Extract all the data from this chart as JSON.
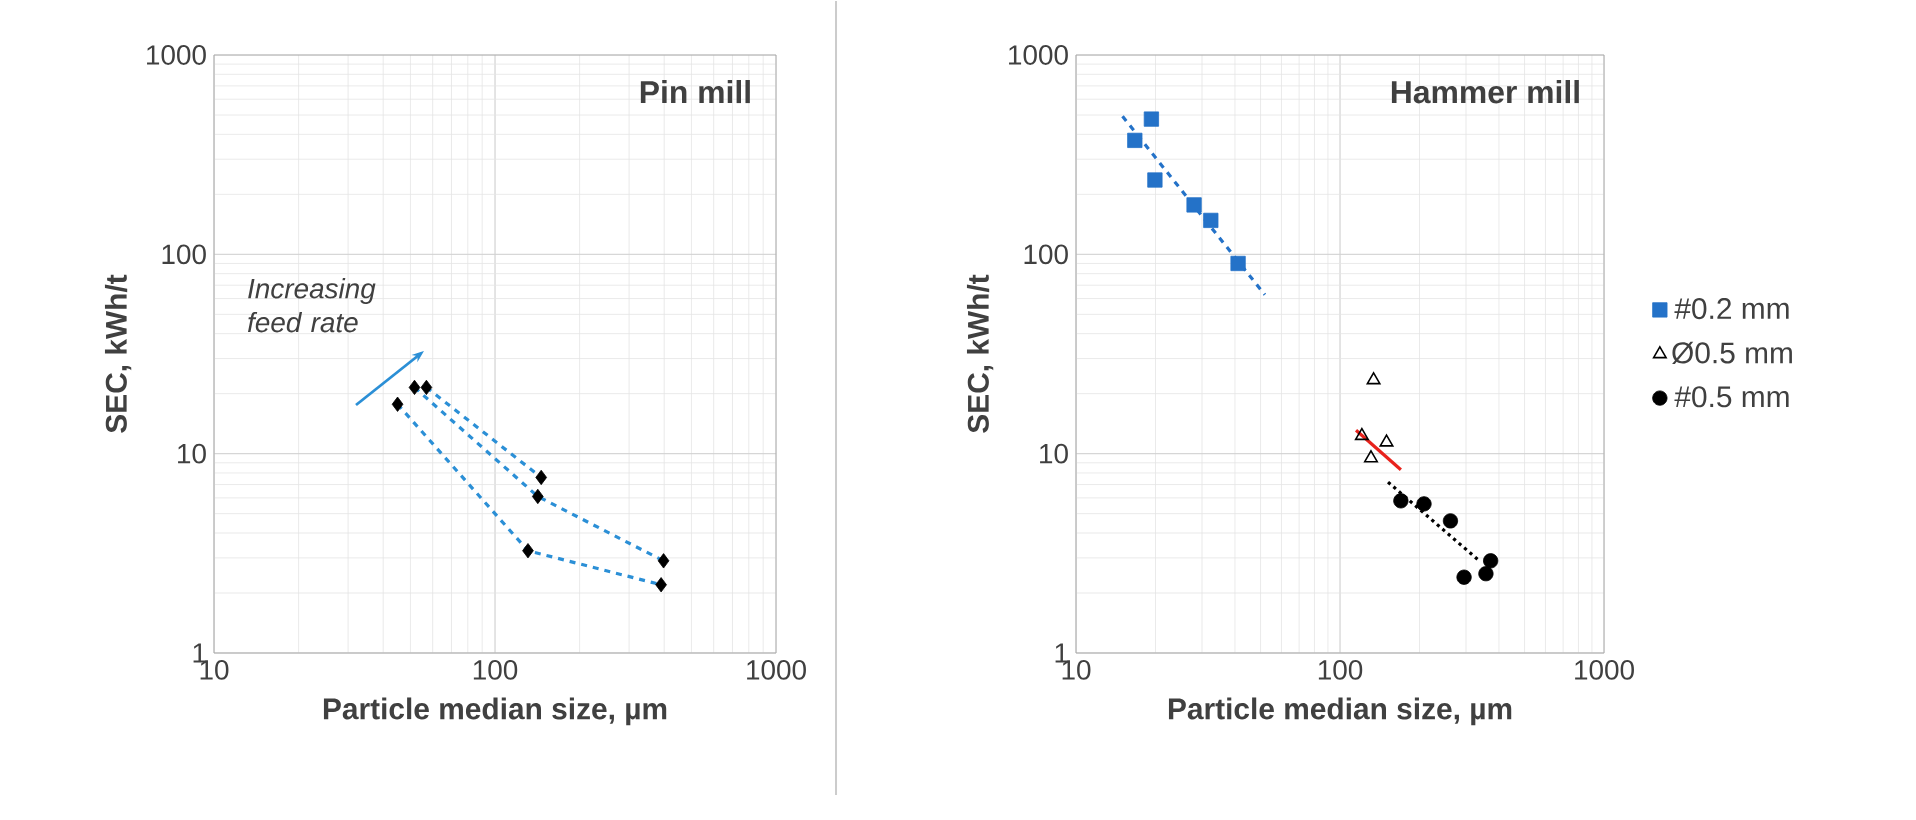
{
  "chart_data": [
    {
      "type": "scatter",
      "title": "Pin mill",
      "xlabel": "Particle median size, µm",
      "ylabel": "SEC, kWh/t",
      "log": "xy",
      "grid": true,
      "legend": false,
      "xlim": [
        10,
        1000
      ],
      "xticks": [
        10,
        100,
        1000
      ],
      "ylim": [
        1,
        1000
      ],
      "yticks": [
        1,
        10,
        100,
        1000
      ],
      "annotations": [
        "Increasing feed rate"
      ],
      "series": [
        {
          "type": "line",
          "line_style": "dashed",
          "marker": "none",
          "color": "#2b8fd6",
          "x": [
            45,
            131,
            390
          ],
          "values": [
            17.7,
            3.26,
            2.2
          ]
        },
        {
          "type": "line",
          "line_style": "dashed",
          "marker": "none",
          "color": "#2b8fd6",
          "x": [
            51.7,
            142,
            398
          ],
          "values": [
            21.5,
            6.1,
            2.9
          ]
        },
        {
          "type": "line",
          "line_style": "dashed",
          "marker": "none",
          "color": "#2b8fd6",
          "x": [
            57,
            146
          ],
          "values": [
            21.5,
            7.6
          ]
        },
        {
          "type": "scatter",
          "marker": "diamond",
          "color": "#000000",
          "x": [
            45,
            51.7,
            57,
            146,
            142,
            131,
            398,
            390
          ],
          "values": [
            17.7,
            21.5,
            21.5,
            7.6,
            6.1,
            3.26,
            2.9,
            2.2
          ]
        }
      ]
    },
    {
      "type": "scatter",
      "title": "Hammer mill",
      "xlabel": "Particle median size, µm",
      "ylabel": "SEC, kWh/t",
      "log": "xy",
      "grid": true,
      "legend": "right",
      "xlim": [
        10,
        1000
      ],
      "xticks": [
        10,
        100,
        1000
      ],
      "ylim": [
        1,
        1000
      ],
      "yticks": [
        1,
        10,
        100,
        1000
      ],
      "series": [
        {
          "type": "line",
          "line_style": "dashed",
          "marker": "none",
          "color": "#2472c8",
          "x": [
            15,
            51.9
          ],
          "values": [
            493,
            62.7
          ]
        },
        {
          "type": "line",
          "line_style": "solid",
          "marker": "none",
          "color": "#e8221c",
          "x": [
            115,
            170
          ],
          "values": [
            13.1,
            8.3
          ]
        },
        {
          "type": "line",
          "line_style": "dotted",
          "marker": "none",
          "color": "#000000",
          "x": [
            152,
            337
          ],
          "values": [
            7.2,
            2.9
          ]
        },
        {
          "name": "#0.2 mm",
          "marker": "square",
          "color": "#2472c8",
          "x": [
            16.7,
            19.3,
            19.9,
            28,
            32.4,
            41.1
          ],
          "values": [
            373,
            477,
            236,
            177,
            148,
            90
          ]
        },
        {
          "name": "Ø0.5 mm",
          "marker": "triangle",
          "color": "#000000",
          "x": [
            134,
            121,
            131,
            150
          ],
          "values": [
            23.4,
            12.3,
            9.5,
            11.4
          ]
        },
        {
          "name": "#0.5 mm",
          "marker": "circle",
          "color": "#000000",
          "x": [
            170,
            208,
            262,
            295,
            357,
            372
          ],
          "values": [
            5.8,
            5.6,
            4.6,
            2.4,
            2.5,
            2.9
          ]
        }
      ]
    }
  ]
}
